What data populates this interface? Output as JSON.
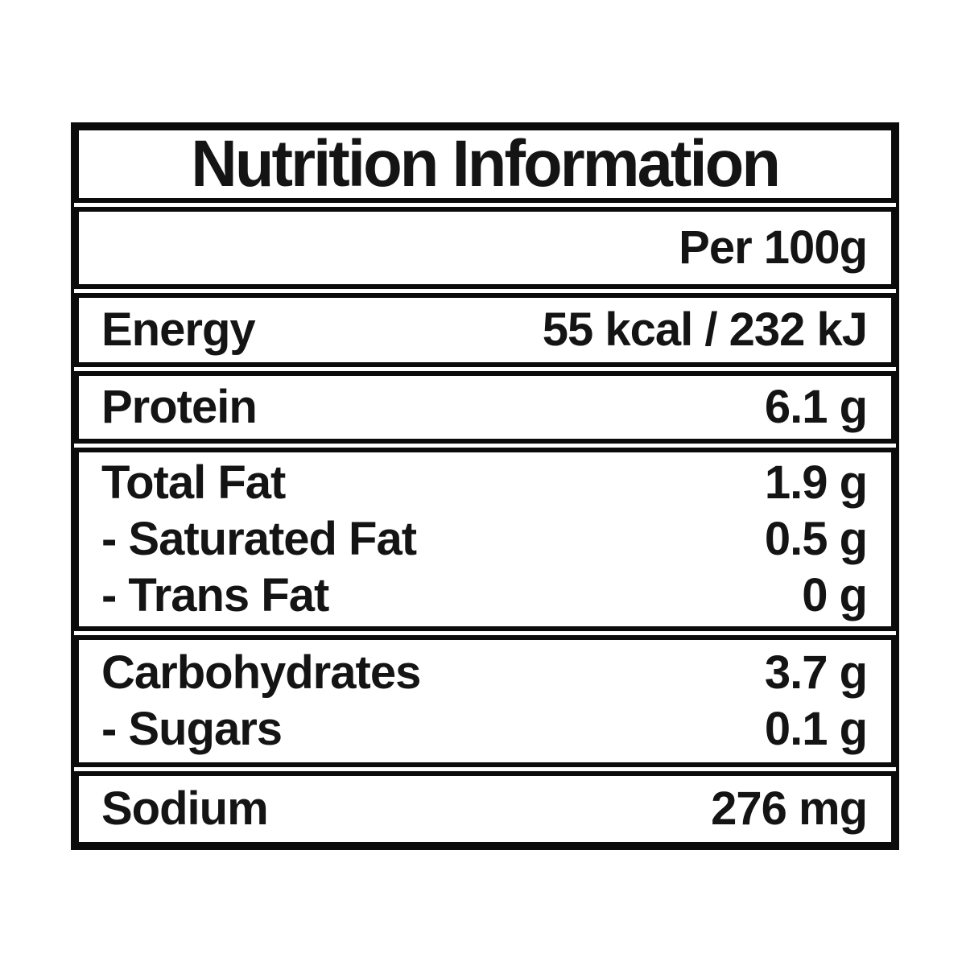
{
  "label": {
    "title": "Nutrition Information",
    "column_header": "Per 100g",
    "sections": [
      {
        "id": "energy",
        "rows": [
          {
            "name": "Energy",
            "value": "55 kcal / 232 kJ"
          }
        ]
      },
      {
        "id": "protein",
        "rows": [
          {
            "name": "Protein",
            "value": "6.1 g"
          }
        ]
      },
      {
        "id": "fat",
        "rows": [
          {
            "name": "Total Fat",
            "value": "1.9 g"
          },
          {
            "name": "- Saturated Fat",
            "value": "0.5 g"
          },
          {
            "name": "- Trans Fat",
            "value": "0 g"
          }
        ]
      },
      {
        "id": "carbohydrates",
        "rows": [
          {
            "name": "Carbohydrates",
            "value": "3.7 g"
          },
          {
            "name": "- Sugars",
            "value": "0.1 g"
          }
        ]
      },
      {
        "id": "sodium",
        "rows": [
          {
            "name": "Sodium",
            "value": "276 mg"
          }
        ]
      }
    ],
    "colors": {
      "border": "#0b0b0b",
      "text": "#141414",
      "background": "#ffffff"
    }
  }
}
